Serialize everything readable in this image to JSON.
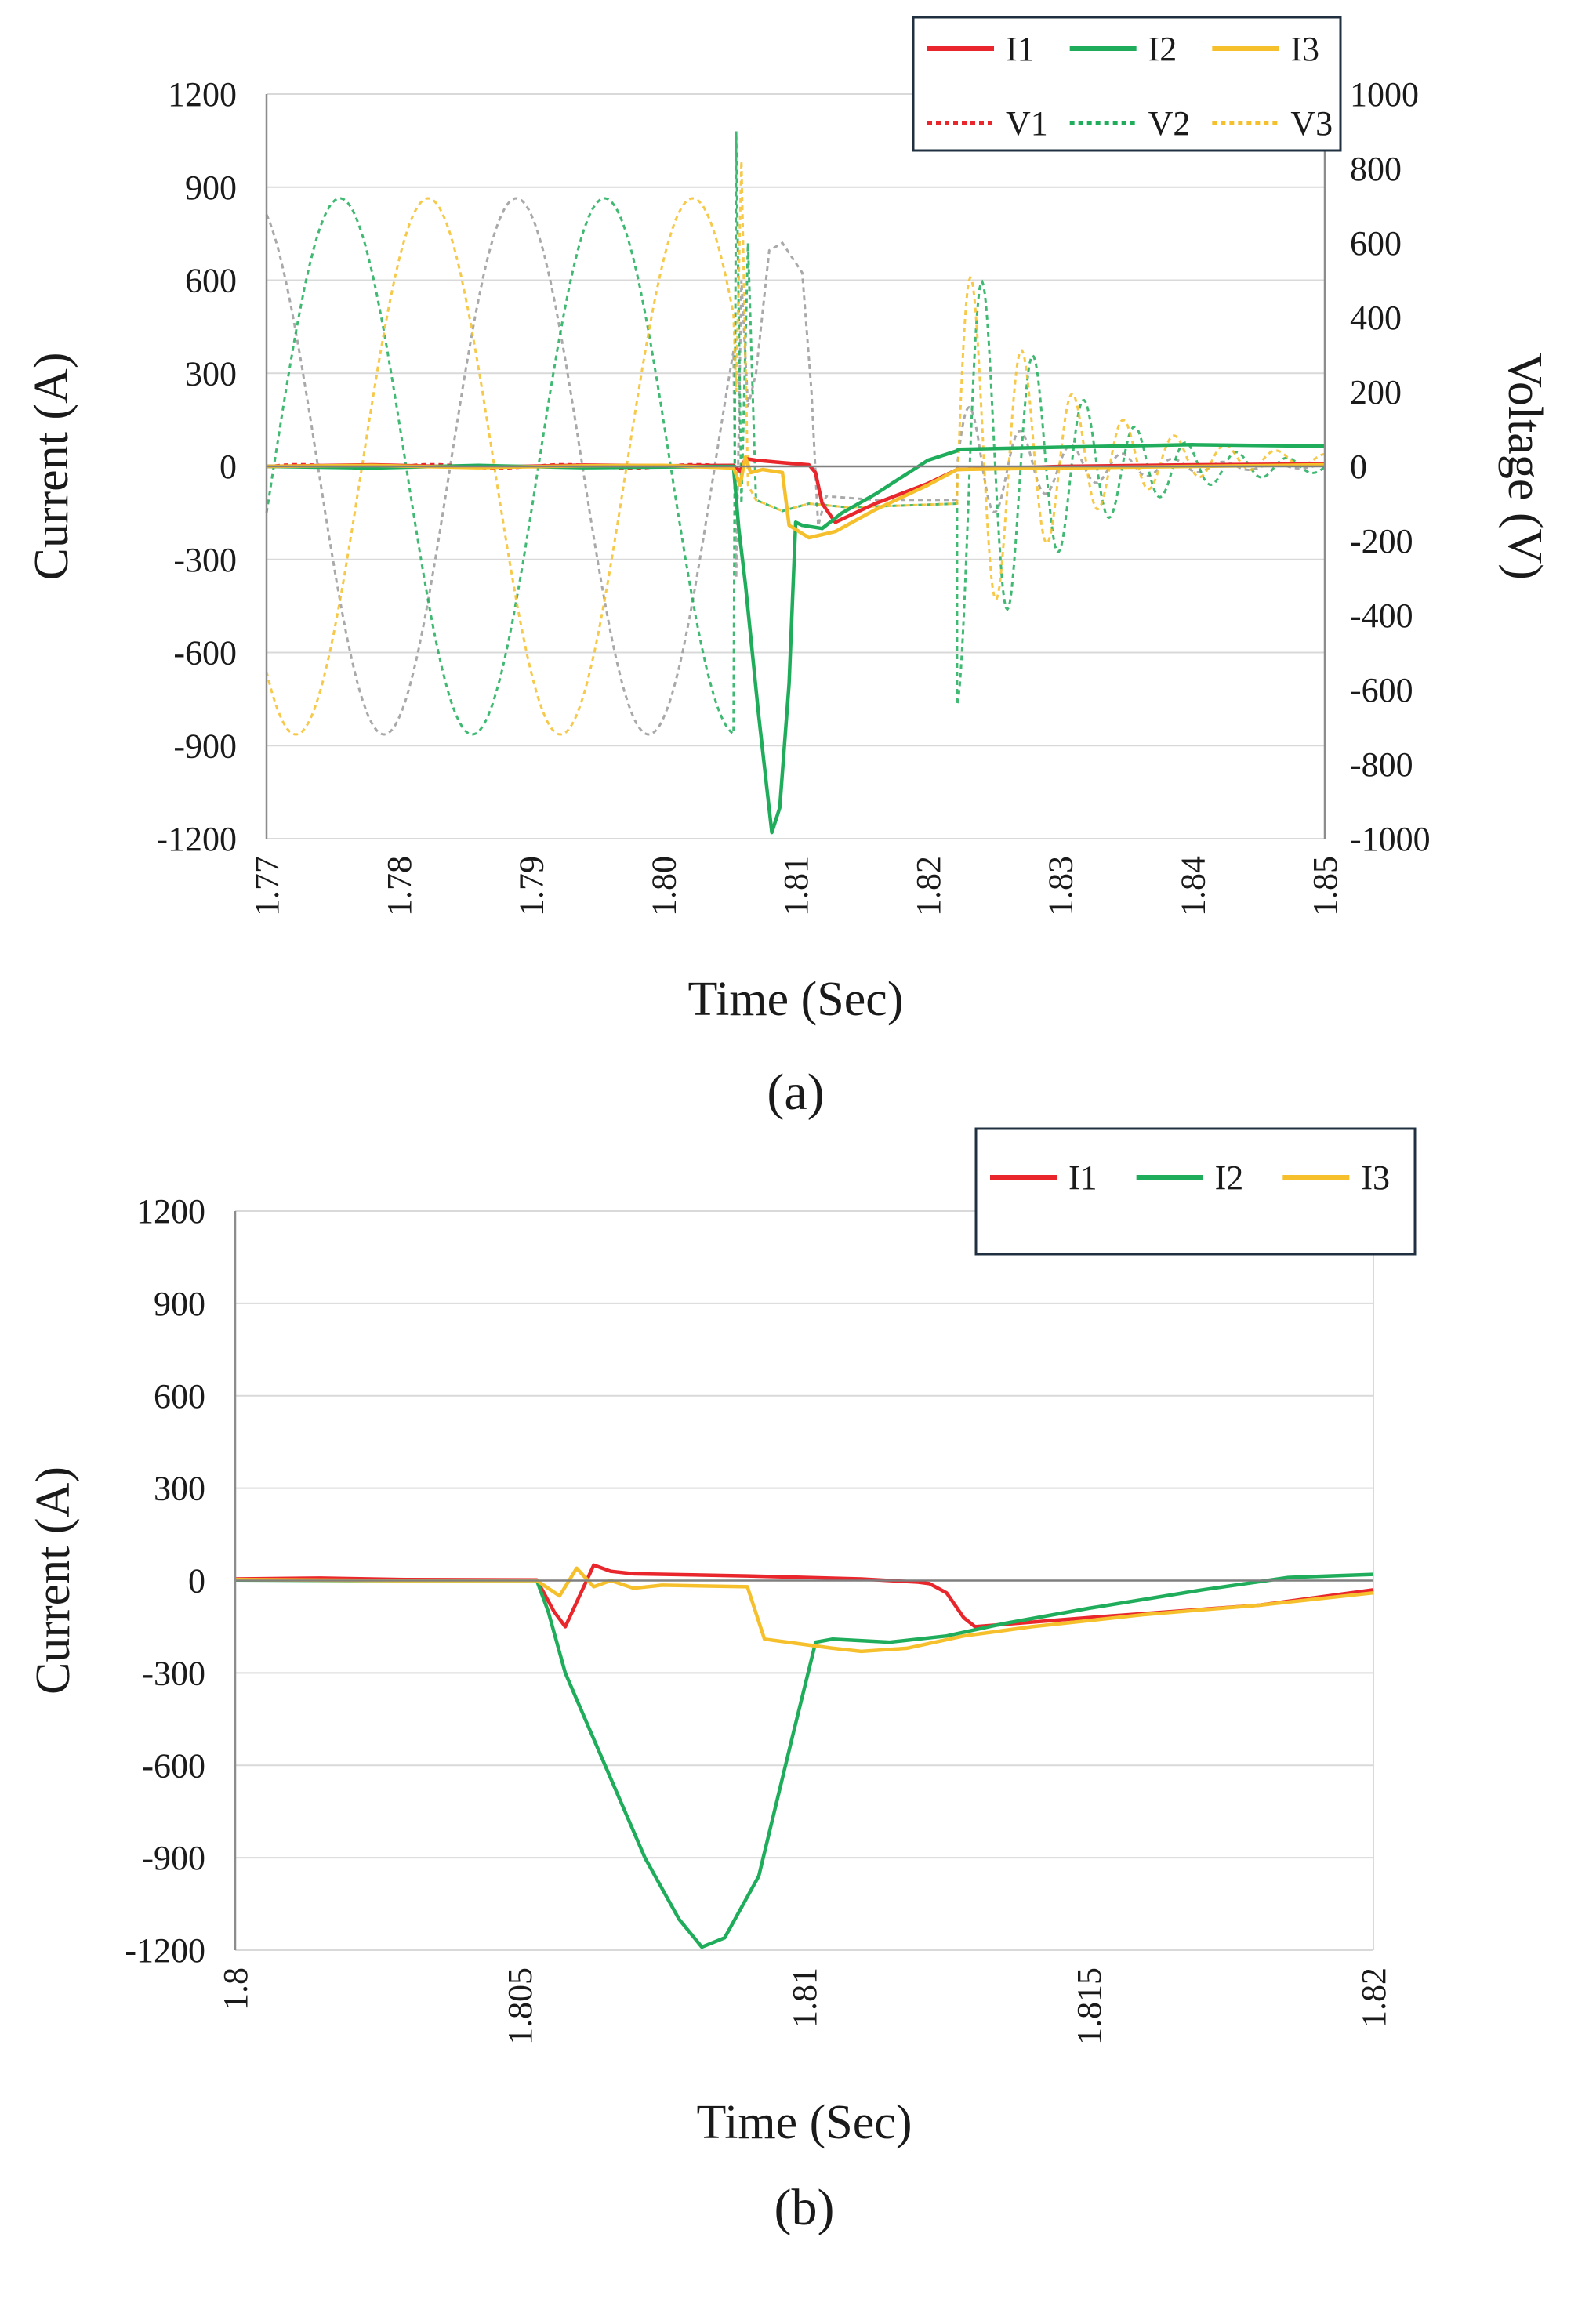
{
  "colors": {
    "I1": "#e8262b",
    "I2": "#1fad5b",
    "I3": "#f5c02c",
    "V1": "#e8262b",
    "V2": "#1fad5b",
    "V3": "#f5c02c",
    "Vgray": "#9a9a9a"
  },
  "chart_data": [
    {
      "id": "a",
      "type": "line",
      "caption": "(a)",
      "xlabel": "Time (Sec)",
      "ylabel": "Current (A)",
      "y2label": "Voltage (V)",
      "xlim": [
        1.77,
        1.85
      ],
      "ylim": [
        -1200,
        1200
      ],
      "y2lim": [
        -1000,
        1000
      ],
      "xticks": [
        "1.77",
        "1.78",
        "1.79",
        "1.80",
        "1.81",
        "1.82",
        "1.83",
        "1.84",
        "1.85"
      ],
      "yticks": [
        "1200",
        "900",
        "600",
        "300",
        "0",
        "-300",
        "-600",
        "-900",
        "-1200"
      ],
      "y2ticks": [
        "1000",
        "800",
        "600",
        "400",
        "200",
        "0",
        "-200",
        "-400",
        "-600",
        "-800",
        "-1000"
      ],
      "grid": true,
      "legend": {
        "position": "top-right",
        "entries": [
          "I1",
          "I2",
          "I3",
          "V1",
          "V2",
          "V3"
        ]
      },
      "series": [
        {
          "name": "I1",
          "axis": "left",
          "style": "solid",
          "points": [
            [
              1.77,
              0
            ],
            [
              1.778,
              5
            ],
            [
              1.786,
              -3
            ],
            [
              1.794,
              4
            ],
            [
              1.8,
              2
            ],
            [
              1.8053,
              3
            ],
            [
              1.8058,
              -15
            ],
            [
              1.8062,
              25
            ],
            [
              1.807,
              20
            ],
            [
              1.809,
              12
            ],
            [
              1.811,
              5
            ],
            [
              1.8115,
              -20
            ],
            [
              1.812,
              -120
            ],
            [
              1.813,
              -180
            ],
            [
              1.816,
              -120
            ],
            [
              1.82,
              -55
            ],
            [
              1.8222,
              -10
            ],
            [
              1.83,
              0
            ],
            [
              1.84,
              5
            ],
            [
              1.85,
              8
            ]
          ]
        },
        {
          "name": "I2",
          "axis": "left",
          "style": "solid",
          "points": [
            [
              1.77,
              0
            ],
            [
              1.778,
              -5
            ],
            [
              1.786,
              3
            ],
            [
              1.794,
              -4
            ],
            [
              1.8,
              -2
            ],
            [
              1.8053,
              0
            ],
            [
              1.8057,
              -200
            ],
            [
              1.8062,
              -380
            ],
            [
              1.8072,
              -800
            ],
            [
              1.8082,
              -1180
            ],
            [
              1.8088,
              -1100
            ],
            [
              1.8095,
              -700
            ],
            [
              1.81,
              -180
            ],
            [
              1.8105,
              -190
            ],
            [
              1.812,
              -200
            ],
            [
              1.8135,
              -150
            ],
            [
              1.816,
              -90
            ],
            [
              1.82,
              20
            ],
            [
              1.8222,
              50
            ],
            [
              1.8223,
              55
            ],
            [
              1.83,
              62
            ],
            [
              1.84,
              70
            ],
            [
              1.85,
              65
            ]
          ]
        },
        {
          "name": "I3",
          "axis": "left",
          "style": "solid",
          "points": [
            [
              1.77,
              0
            ],
            [
              1.778,
              3
            ],
            [
              1.786,
              -4
            ],
            [
              1.794,
              2
            ],
            [
              1.8,
              3
            ],
            [
              1.8053,
              -5
            ],
            [
              1.8058,
              -60
            ],
            [
              1.8062,
              30
            ],
            [
              1.8066,
              -20
            ],
            [
              1.8075,
              -10
            ],
            [
              1.809,
              -20
            ],
            [
              1.8095,
              -190
            ],
            [
              1.811,
              -230
            ],
            [
              1.813,
              -210
            ],
            [
              1.816,
              -140
            ],
            [
              1.82,
              -60
            ],
            [
              1.8222,
              -10
            ],
            [
              1.83,
              -5
            ],
            [
              1.84,
              0
            ],
            [
              1.85,
              5
            ]
          ]
        }
      ],
      "voltage_waves": {
        "amplitude_V": 720,
        "frequency_Hz": 50,
        "fault_time": 1.8053,
        "reclose_time": 1.8222,
        "post_fault_decay": 0.0075
      }
    },
    {
      "id": "b",
      "type": "line",
      "caption": "(b)",
      "xlabel": "Time (Sec)",
      "ylabel": "Current (A)",
      "xlim": [
        1.8,
        1.82
      ],
      "ylim": [
        -1200,
        1200
      ],
      "xticks": [
        "1.8",
        "1.805",
        "1.81",
        "1.815",
        "1.82"
      ],
      "yticks": [
        "1200",
        "900",
        "600",
        "300",
        "0",
        "-300",
        "-600",
        "-900",
        "-1200"
      ],
      "grid": true,
      "legend": {
        "position": "top-right",
        "entries": [
          "I1",
          "I2",
          "I3"
        ]
      },
      "series": [
        {
          "name": "I1",
          "points": [
            [
              1.8,
              5
            ],
            [
              1.8015,
              8
            ],
            [
              1.803,
              3
            ],
            [
              1.8053,
              2
            ],
            [
              1.8056,
              -100
            ],
            [
              1.8058,
              -150
            ],
            [
              1.8061,
              -30
            ],
            [
              1.8063,
              50
            ],
            [
              1.8066,
              30
            ],
            [
              1.807,
              22
            ],
            [
              1.809,
              15
            ],
            [
              1.811,
              5
            ],
            [
              1.812,
              -5
            ],
            [
              1.8122,
              -10
            ],
            [
              1.8125,
              -40
            ],
            [
              1.8128,
              -120
            ],
            [
              1.813,
              -150
            ],
            [
              1.815,
              -120
            ],
            [
              1.818,
              -80
            ],
            [
              1.82,
              -30
            ]
          ]
        },
        {
          "name": "I2",
          "points": [
            [
              1.8,
              2
            ],
            [
              1.802,
              0
            ],
            [
              1.8053,
              0
            ],
            [
              1.8055,
              -100
            ],
            [
              1.8058,
              -300
            ],
            [
              1.8065,
              -600
            ],
            [
              1.8072,
              -900
            ],
            [
              1.8078,
              -1100
            ],
            [
              1.8082,
              -1190
            ],
            [
              1.8086,
              -1160
            ],
            [
              1.8092,
              -960
            ],
            [
              1.8098,
              -500
            ],
            [
              1.8102,
              -200
            ],
            [
              1.8105,
              -190
            ],
            [
              1.8115,
              -200
            ],
            [
              1.8125,
              -180
            ],
            [
              1.8135,
              -140
            ],
            [
              1.815,
              -90
            ],
            [
              1.817,
              -30
            ],
            [
              1.8185,
              10
            ],
            [
              1.82,
              20
            ]
          ]
        },
        {
          "name": "I3",
          "points": [
            [
              1.8,
              3
            ],
            [
              1.803,
              0
            ],
            [
              1.8053,
              0
            ],
            [
              1.8057,
              -50
            ],
            [
              1.806,
              40
            ],
            [
              1.8063,
              -20
            ],
            [
              1.8066,
              0
            ],
            [
              1.807,
              -25
            ],
            [
              1.8075,
              -15
            ],
            [
              1.809,
              -20
            ],
            [
              1.8093,
              -190
            ],
            [
              1.8105,
              -220
            ],
            [
              1.811,
              -230
            ],
            [
              1.8118,
              -220
            ],
            [
              1.8128,
              -180
            ],
            [
              1.814,
              -150
            ],
            [
              1.816,
              -110
            ],
            [
              1.818,
              -80
            ],
            [
              1.82,
              -40
            ]
          ]
        }
      ]
    }
  ]
}
